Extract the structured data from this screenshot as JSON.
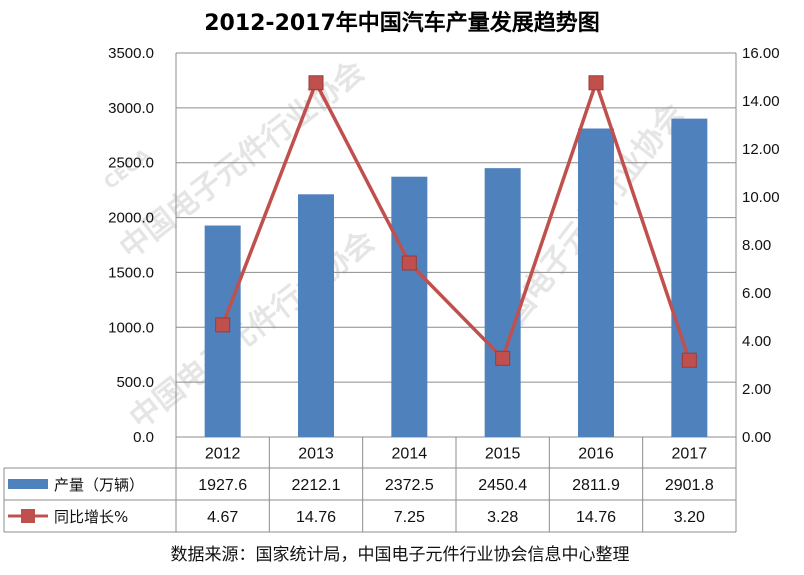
{
  "chart_data": {
    "type": "bar+line",
    "title": "2012-2017年中国汽车产量发展趋势图",
    "categories": [
      "2012",
      "2013",
      "2014",
      "2015",
      "2016",
      "2017"
    ],
    "series": [
      {
        "name": "产量（万辆）",
        "type": "bar",
        "axis": "left",
        "color": "#4f81bd",
        "values": [
          1927.6,
          2212.1,
          2372.5,
          2450.4,
          2811.9,
          2901.8
        ],
        "value_labels": [
          "1927.6",
          "2212.1",
          "2372.5",
          "2450.4",
          "2811.9",
          "2901.8"
        ]
      },
      {
        "name": "同比增长%",
        "type": "line",
        "axis": "right",
        "color": "#c0504d",
        "values": [
          4.67,
          14.76,
          7.25,
          3.28,
          14.76,
          3.2
        ],
        "value_labels": [
          "4.67",
          "14.76",
          "7.25",
          "3.28",
          "14.76",
          "3.20"
        ]
      }
    ],
    "y_left": {
      "range": [
        0,
        3500
      ],
      "ticks": [
        "0.0",
        "500.0",
        "1000.0",
        "1500.0",
        "2000.0",
        "2500.0",
        "3000.0",
        "3500.0"
      ]
    },
    "y_right": {
      "range": [
        0,
        16
      ],
      "ticks": [
        "0.00",
        "2.00",
        "4.00",
        "6.00",
        "8.00",
        "10.00",
        "12.00",
        "14.00",
        "16.00"
      ]
    },
    "data_table": true,
    "gridlines": "horizontal"
  },
  "source_text": "数据来源：国家统计局，中国电子元件行业协会信息中心整理",
  "watermark": {
    "text": "中国电子元件行业协会",
    "logo_text": "CECA"
  }
}
